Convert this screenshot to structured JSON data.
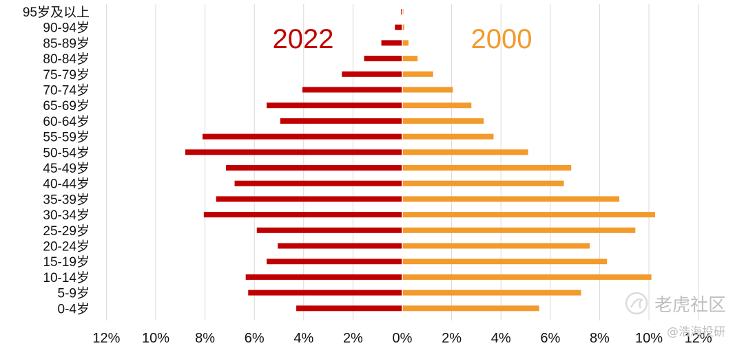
{
  "chart_data": {
    "type": "bar",
    "subtype": "population-pyramid",
    "categories": [
      "95岁及以上",
      "90-94岁",
      "85-89岁",
      "80-84岁",
      "75-79岁",
      "70-74岁",
      "65-69岁",
      "60-64岁",
      "55-59岁",
      "50-54岁",
      "45-49岁",
      "40-44岁",
      "35-39岁",
      "30-34岁",
      "25-29岁",
      "20-24岁",
      "15-19岁",
      "10-14岁",
      "5-9岁",
      "0-4岁"
    ],
    "series": [
      {
        "name": "2022",
        "side": "left",
        "color": "#c00000",
        "values": [
          0.05,
          0.3,
          0.85,
          1.55,
          2.45,
          4.05,
          5.5,
          4.95,
          8.1,
          8.8,
          7.15,
          6.8,
          7.55,
          8.05,
          5.9,
          5.05,
          5.5,
          6.35,
          6.25,
          4.3
        ]
      },
      {
        "name": "2000",
        "side": "right",
        "color": "#f39a2c",
        "values": [
          0.02,
          0.08,
          0.25,
          0.62,
          1.25,
          2.05,
          2.8,
          3.3,
          3.7,
          5.1,
          6.85,
          6.55,
          8.8,
          10.25,
          9.45,
          7.6,
          8.3,
          10.1,
          7.25,
          5.55
        ]
      }
    ],
    "x_ticks": [
      "12%",
      "10%",
      "8%",
      "6%",
      "4%",
      "2%",
      "0%",
      "2%",
      "4%",
      "6%",
      "8%",
      "10%",
      "12%"
    ],
    "xlim": [
      -12,
      12
    ],
    "grid": true,
    "title": "",
    "xlabel": "",
    "ylabel": ""
  },
  "watermark": {
    "brand": "老虎社区",
    "handle": "@浩海投研"
  }
}
